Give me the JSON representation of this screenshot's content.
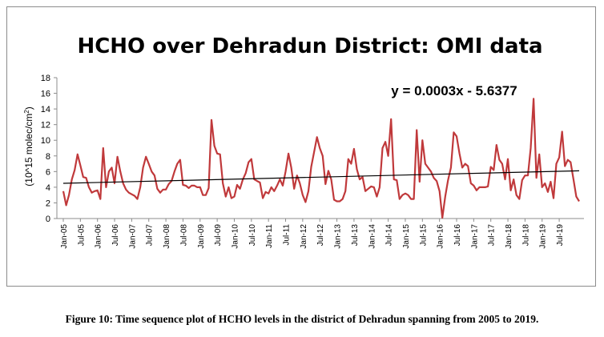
{
  "chart_data": {
    "type": "line",
    "title": "HCHO over Dehradun District: OMI data",
    "ylabel": "(10^15 molec/cm",
    "ylabel_sup": "2",
    "ylabel_close": ")",
    "ylim": [
      0,
      18
    ],
    "yticks": [
      0,
      2,
      4,
      6,
      8,
      10,
      12,
      14,
      16,
      18
    ],
    "x_tick_labels": [
      "Jan-05",
      "Jul-05",
      "Jan-06",
      "Jul-06",
      "Jan-07",
      "Jul-07",
      "Jan-08",
      "Jul-08",
      "Jan-09",
      "Jul-09",
      "Jan-10",
      "Jul-10",
      "Jan-11",
      "Jul-11",
      "Jan-12",
      "Jul-12",
      "Jan-13",
      "Jul-13",
      "Jan-14",
      "Jul-14",
      "Jan-15",
      "Jul-15",
      "Jan-16",
      "Jul-16",
      "Jan-17",
      "Jul-17",
      "Jan-18",
      "Jul-18",
      "Jan-19",
      "Jul-19"
    ],
    "trendline_equation": "y = 0.0003x - 5.6377",
    "trendline": {
      "start": 4.5,
      "end": 6.1
    },
    "series_color": "#c0393b",
    "trendline_color": "#000000",
    "grid": false,
    "legend": "none",
    "series": [
      {
        "values": [
          3.5,
          1.7,
          3.0,
          5.0,
          6.2,
          8.2,
          6.8,
          5.3,
          5.2,
          4.0,
          3.3,
          3.5,
          3.6,
          2.5,
          9.0,
          4.0,
          6.0,
          6.5,
          4.5,
          7.9,
          6.0,
          4.5,
          3.7,
          3.3,
          3.1,
          2.9,
          2.5,
          4.0,
          6.5,
          7.9,
          7.0,
          6.0,
          5.5,
          3.8,
          3.3,
          3.7,
          3.7,
          4.4,
          4.8,
          6.0,
          7.0,
          7.5,
          4.3,
          4.2,
          3.9,
          4.2,
          4.2,
          4.0,
          4.0,
          3.0,
          3.0,
          3.9,
          12.6,
          9.3,
          8.3,
          8.2,
          4.5,
          2.8,
          4.0,
          2.6,
          2.8,
          4.3,
          3.8,
          5.0,
          5.8,
          7.2,
          7.6,
          5.0,
          4.8,
          4.6,
          2.6,
          3.4,
          3.2,
          4.0,
          3.5,
          4.2,
          5.0,
          4.2,
          6.0,
          8.3,
          6.5,
          3.8,
          5.5,
          4.5,
          3.0,
          2.1,
          3.5,
          6.6,
          8.5,
          10.4,
          9.0,
          8.0,
          4.4,
          6.1,
          5.0,
          2.4,
          2.2,
          2.2,
          2.5,
          3.5,
          7.6,
          7.0,
          8.9,
          6.3,
          5.0,
          5.3,
          3.5,
          3.8,
          4.1,
          4.0,
          2.8,
          4.0,
          9.0,
          9.8,
          8.0,
          12.7,
          5.0,
          4.9,
          2.5,
          3.0,
          3.2,
          3.0,
          2.5,
          2.5,
          11.3,
          4.7,
          10.0,
          7.0,
          6.5,
          6.0,
          5.2,
          4.8,
          3.5,
          0.1,
          2.8,
          4.9,
          6.5,
          11.0,
          10.5,
          8.3,
          6.5,
          7.0,
          6.7,
          4.5,
          4.2,
          3.6,
          4.0,
          4.0,
          4.0,
          4.1,
          6.6,
          6.2,
          9.4,
          7.5,
          7.0,
          5.0,
          7.6,
          3.6,
          5.0,
          3.0,
          2.5,
          4.9,
          5.5,
          5.5,
          9.0,
          15.3,
          5.2,
          8.2,
          4.0,
          4.5,
          3.4,
          4.7,
          2.6,
          7.0,
          7.8,
          11.1,
          6.7,
          7.5,
          7.2,
          5.0,
          2.8,
          2.2
        ]
      }
    ]
  },
  "caption": "Figure 10: Time sequence plot of HCHO levels in the district of Dehradun spanning from 2005 to 2019."
}
